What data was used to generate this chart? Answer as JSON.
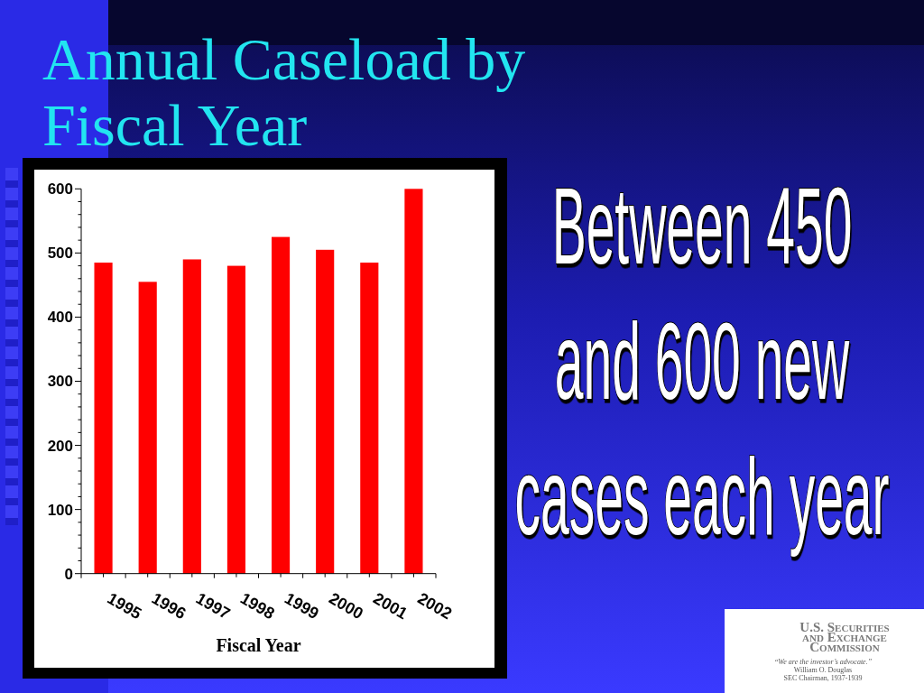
{
  "chart_data": {
    "type": "bar",
    "title": "Annual Caseload by Fiscal Year",
    "xlabel": "Fiscal Year",
    "categories": [
      "1995",
      "1996",
      "1997",
      "1998",
      "1999",
      "2000",
      "2001",
      "2002"
    ],
    "values": [
      485,
      455,
      490,
      480,
      525,
      505,
      485,
      600
    ],
    "color": "#ff0000",
    "ylim": [
      0,
      600
    ],
    "yticks": [
      0,
      {
        "value": 20,
        "label": null
      },
      {
        "value": 40,
        "label": null
      },
      {
        "value": 60,
        "label": null
      },
      {
        "value": 80,
        "label": null
      },
      100,
      {
        "value": 120,
        "label": null
      },
      {
        "value": 140,
        "label": null
      },
      {
        "value": 160,
        "label": null
      },
      {
        "value": 180,
        "label": null
      },
      200,
      {
        "value": 220,
        "label": null
      },
      {
        "value": 240,
        "label": null
      },
      {
        "value": 260,
        "label": null
      },
      {
        "value": 280,
        "label": null
      },
      300,
      {
        "value": 320,
        "label": null
      },
      {
        "value": 340,
        "label": null
      },
      {
        "value": 360,
        "label": null
      },
      {
        "value": 380,
        "label": null
      },
      400,
      {
        "value": 420,
        "label": null
      },
      {
        "value": 440,
        "label": null
      },
      {
        "value": 460,
        "label": null
      },
      {
        "value": 480,
        "label": null
      },
      500,
      {
        "value": 520,
        "label": null
      },
      {
        "value": 540,
        "label": null
      },
      {
        "value": 560,
        "label": null
      },
      {
        "value": 580,
        "label": null
      },
      600
    ],
    "annotations": [
      "Between 450 and 600 new cases each year",
      "U.S. Securities and Exchange Commission",
      "“We are the investor’s advocate.”",
      "William O. Douglas",
      "SEC Chairman, 1937-1939"
    ]
  }
}
